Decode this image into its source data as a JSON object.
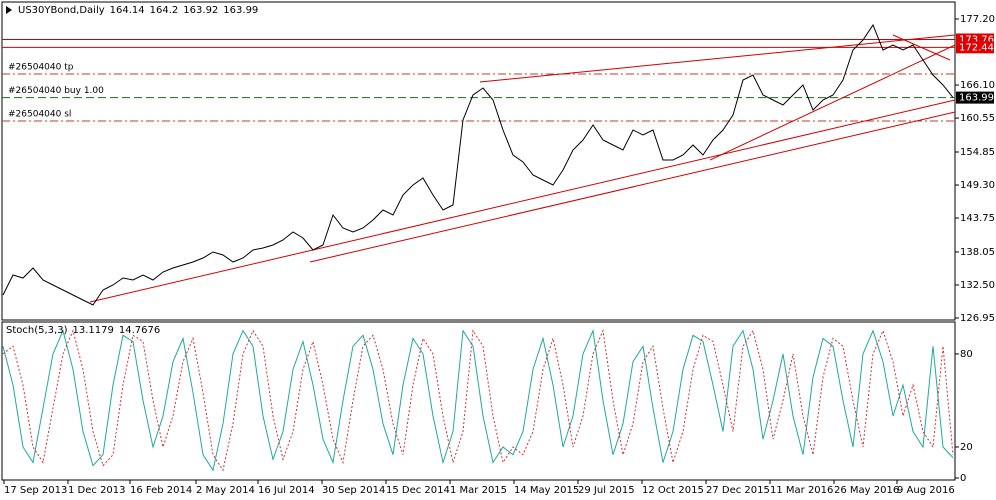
{
  "chart_data": [
    {
      "type": "line",
      "title": "US30YBond,Daily",
      "ohlc": [
        164.14,
        164.2,
        163.92,
        163.99
      ],
      "color": "#000000",
      "x": [
        0,
        1,
        2,
        3,
        4,
        5,
        6,
        7,
        8,
        9,
        10,
        11,
        12,
        13,
        14,
        15,
        16,
        17,
        18,
        19,
        20,
        21,
        22,
        23,
        24,
        25,
        26,
        27,
        28,
        29,
        30,
        31,
        32,
        33,
        34,
        35,
        36,
        37,
        38,
        39,
        40,
        41,
        42,
        43,
        44,
        45,
        46,
        47,
        48,
        49,
        50,
        51,
        52,
        53,
        54,
        55,
        56,
        57,
        58,
        59,
        60,
        61,
        62,
        63,
        64,
        65,
        66,
        67,
        68,
        69,
        70,
        71,
        72,
        73,
        74,
        75,
        76,
        77,
        78,
        79,
        80,
        81,
        82,
        83,
        84,
        85,
        86,
        87,
        88,
        89,
        90,
        91,
        92,
        93,
        94,
        95
      ],
      "values": [
        130.81,
        134.17,
        133.67,
        135.35,
        133.33,
        132.49,
        131.65,
        130.81,
        129.97,
        129.13,
        131.65,
        132.49,
        133.67,
        133.33,
        134.17,
        133.33,
        134.68,
        135.35,
        135.85,
        136.36,
        137.03,
        138.04,
        137.54,
        136.36,
        137.03,
        138.38,
        138.71,
        139.22,
        140.06,
        141.4,
        140.39,
        138.38,
        139.22,
        144.26,
        142.07,
        141.4,
        142.07,
        143.42,
        145.1,
        144.26,
        147.62,
        149.3,
        150.48,
        147.62,
        145.1,
        145.94,
        160.22,
        164.43,
        165.6,
        163.59,
        158.54,
        154.34,
        153.17,
        150.98,
        150.14,
        149.3,
        151.82,
        155.18,
        156.86,
        159.38,
        156.86,
        156.02,
        155.18,
        158.54,
        157.7,
        158.54,
        153.5,
        153.5,
        154.34,
        156.02,
        154.34,
        156.86,
        158.54,
        161.07,
        166.95,
        167.79,
        164.43,
        163.59,
        162.75,
        164.43,
        166.11,
        161.91,
        163.59,
        164.43,
        166.95,
        171.99,
        173.67,
        176.19,
        171.99,
        172.83,
        171.99,
        172.83,
        170.31,
        167.79,
        166.11,
        163.99
      ],
      "xlim": [
        -0.1,
        95.2
      ],
      "xticks": [
        {
          "value": 0.1,
          "label": "17 Sep 2013"
        },
        {
          "value": 6.5,
          "label": "1 Dec 2013"
        },
        {
          "value": 12.7,
          "label": "16 Feb 2014"
        },
        {
          "value": 19.3,
          "label": "2 May 2014"
        },
        {
          "value": 25.5,
          "label": "16 Jul 2014"
        },
        {
          "value": 31.9,
          "label": "30 Sep 2014"
        },
        {
          "value": 38.3,
          "label": "15 Dec 2014"
        },
        {
          "value": 44.7,
          "label": "1 Mar 2015"
        },
        {
          "value": 51.1,
          "label": "14 May 2015"
        },
        {
          "value": 57.5,
          "label": "29 Jul 2015"
        },
        {
          "value": 63.9,
          "label": "12 Oct 2015"
        },
        {
          "value": 70.3,
          "label": "27 Dec 2015"
        },
        {
          "value": 76.7,
          "label": "11 Mar 2016"
        },
        {
          "value": 83.1,
          "label": "26 May 2016"
        },
        {
          "value": 89.4,
          "label": "9 Aug 2016"
        }
      ],
      "ylim": [
        126.61,
        180.06
      ],
      "yticks": [
        {
          "value": 126.95,
          "label": "126.95"
        },
        {
          "value": 132.5,
          "label": "132.50"
        },
        {
          "value": 138.05,
          "label": "138.05"
        },
        {
          "value": 143.75,
          "label": "143.75"
        },
        {
          "value": 149.3,
          "label": "149.30"
        },
        {
          "value": 154.85,
          "label": "154.85"
        },
        {
          "value": 160.55,
          "label": "160.55"
        },
        {
          "value": 166.1,
          "label": "166.10"
        },
        {
          "value": 177.2,
          "label": "177.20"
        }
      ],
      "price_labels": [
        {
          "value": 173.76,
          "color": "#e00000"
        },
        {
          "value": 172.44,
          "color": "#e00000"
        },
        {
          "value": 163.99,
          "color": "#000000"
        }
      ],
      "levels": [
        {
          "label": "#26504040 tp",
          "value": 167.96,
          "color": "#c0392b"
        },
        {
          "label": "#26504040 buy 1.00",
          "value": 163.99,
          "color": "#1e6b1e"
        },
        {
          "label": "#26504040 sl",
          "value": 160.06,
          "color": "#c0392b"
        }
      ],
      "hlines": [
        {
          "value": 173.76,
          "color": "#d00000"
        },
        {
          "value": 172.44,
          "color": "#d00000"
        }
      ],
      "trendlines": [
        {
          "from": [
            8.7,
            129.63
          ],
          "to": [
            95.2,
            163.59
          ],
          "color": "#d00000"
        },
        {
          "from": [
            30.7,
            136.36
          ],
          "to": [
            95.2,
            161.57
          ],
          "color": "#d00000"
        },
        {
          "from": [
            47.7,
            166.61
          ],
          "to": [
            95.2,
            174.51
          ],
          "color": "#d00000"
        },
        {
          "from": [
            70.7,
            153.5
          ],
          "to": [
            95.2,
            172.83
          ],
          "color": "#d00000"
        },
        {
          "from": [
            89,
            174.51
          ],
          "to": [
            94.7,
            170.31
          ],
          "color": "#d00000"
        }
      ]
    },
    {
      "type": "line",
      "title": "Stoch(5,3,3)",
      "ylim": [
        -1.3,
        100.6
      ],
      "yticks": [
        0,
        20,
        80
      ],
      "series": [
        {
          "color": "#20a8a0",
          "values": [
            85,
            60,
            20,
            10,
            45,
            80,
            95,
            70,
            30,
            8,
            15,
            60,
            92,
            88,
            50,
            20,
            40,
            75,
            90,
            55,
            15,
            5,
            35,
            80,
            95,
            85,
            40,
            12,
            30,
            70,
            88,
            60,
            25,
            10,
            50,
            85,
            92,
            70,
            35,
            15,
            60,
            90,
            80,
            40,
            10,
            30,
            95,
            85,
            40,
            10,
            20,
            15,
            30,
            70,
            90,
            60,
            20,
            40,
            80,
            95,
            50,
            15,
            35,
            75,
            85,
            45,
            10,
            30,
            70,
            92,
            88,
            60,
            30,
            85,
            95,
            70,
            25,
            50,
            80,
            40,
            15,
            65,
            90,
            85,
            50,
            20,
            80,
            95,
            75,
            40,
            60,
            30,
            20,
            85,
            20,
            13.1179
          ]
        },
        {
          "color": "#d03030",
          "dashed": true,
          "values": [
            80,
            85,
            60,
            20,
            10,
            45,
            80,
            95,
            70,
            30,
            8,
            15,
            60,
            92,
            88,
            50,
            20,
            40,
            75,
            90,
            55,
            15,
            5,
            35,
            80,
            95,
            85,
            40,
            12,
            30,
            70,
            88,
            60,
            25,
            10,
            50,
            85,
            92,
            70,
            35,
            15,
            60,
            90,
            80,
            40,
            10,
            30,
            95,
            85,
            40,
            10,
            20,
            15,
            30,
            70,
            90,
            60,
            20,
            40,
            80,
            95,
            50,
            15,
            35,
            75,
            85,
            45,
            10,
            30,
            70,
            92,
            88,
            60,
            30,
            85,
            95,
            70,
            25,
            50,
            80,
            40,
            15,
            65,
            90,
            85,
            50,
            20,
            80,
            95,
            75,
            40,
            60,
            30,
            20,
            85,
            14.7676
          ]
        }
      ]
    }
  ]
}
